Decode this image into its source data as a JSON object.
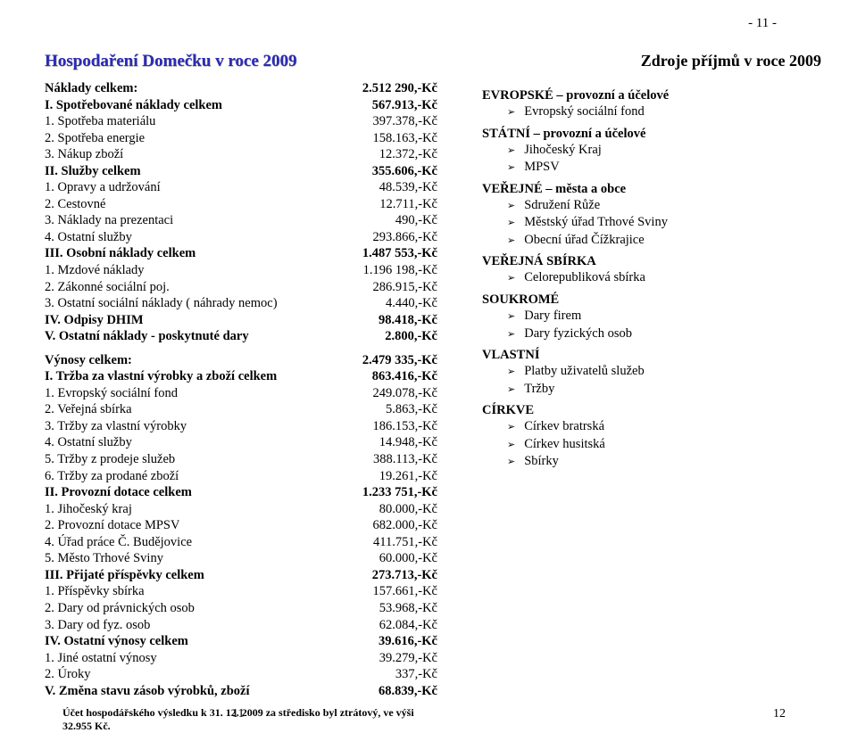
{
  "page_top": "- 11 -",
  "left_title": "Hospodaření Domečku v roce 2009",
  "right_title": "Zdroje příjmů v roce 2009",
  "expenses": [
    {
      "label": "Náklady celkem:",
      "value": "2.512 290,-Kč",
      "bold": true
    },
    {
      "label": "I. Spotřebované náklady celkem",
      "value": "567.913,-Kč",
      "bold": true
    },
    {
      "label": "1. Spotřeba materiálu",
      "value": "397.378,-Kč"
    },
    {
      "label": "2. Spotřeba energie",
      "value": "158.163,-Kč"
    },
    {
      "label": "3. Nákup zboží",
      "value": "12.372,-Kč"
    },
    {
      "label": "II. Služby celkem",
      "value": "355.606,-Kč",
      "bold": true
    },
    {
      "label": "1. Opravy a udržování",
      "value": "48.539,-Kč"
    },
    {
      "label": "2. Cestovné",
      "value": "12.711,-Kč"
    },
    {
      "label": "3. Náklady na prezentaci",
      "value": "490,-Kč"
    },
    {
      "label": "4. Ostatní služby",
      "value": "293.866,-Kč"
    },
    {
      "label": "III. Osobní náklady celkem",
      "value": "1.487 553,-Kč",
      "bold": true
    },
    {
      "label": "1. Mzdové náklady",
      "value": "1.196 198,-Kč"
    },
    {
      "label": "2. Zákonné sociální poj.",
      "value": "286.915,-Kč"
    },
    {
      "label": "3. Ostatní sociální náklady ( náhrady nemoc)",
      "value": "4.440,-Kč"
    },
    {
      "label": "IV. Odpisy DHIM",
      "value": "98.418,-Kč",
      "bold": true
    },
    {
      "label": "V. Ostatní náklady - poskytnuté dary",
      "value": "2.800,-Kč",
      "bold": true
    }
  ],
  "revenues": [
    {
      "label": "Výnosy celkem:",
      "value": "2.479 335,-Kč",
      "bold": true
    },
    {
      "label": "I. Tržba za vlastní výrobky a zboží celkem",
      "value": "863.416,-Kč",
      "bold": true
    },
    {
      "label": "1. Evropský sociální fond",
      "value": "249.078,-Kč"
    },
    {
      "label": "2. Veřejná sbírka",
      "value": "5.863,-Kč"
    },
    {
      "label": "3. Tržby za vlastní výrobky",
      "value": "186.153,-Kč"
    },
    {
      "label": "4. Ostatní služby",
      "value": "14.948,-Kč"
    },
    {
      "label": "5. Tržby z prodeje služeb",
      "value": "388.113,-Kč"
    },
    {
      "label": "6. Tržby za prodané zboží",
      "value": "19.261,-Kč"
    },
    {
      "label": "II. Provozní dotace celkem",
      "value": "1.233 751,-Kč",
      "bold": true
    },
    {
      "label": "1. Jihočeský kraj",
      "value": "80.000,-Kč"
    },
    {
      "label": "2. Provozní dotace MPSV",
      "value": "682.000,-Kč"
    },
    {
      "label": "4. Úřad práce Č. Budějovice",
      "value": "411.751,-Kč"
    },
    {
      "label": "5. Město Trhové Sviny",
      "value": "60.000,-Kč"
    },
    {
      "label": "III. Přijaté příspěvky celkem",
      "value": "273.713,-Kč",
      "bold": true
    },
    {
      "label": "1. Příspěvky sbírka",
      "value": "157.661,-Kč"
    },
    {
      "label": "2. Dary od právnických osob",
      "value": "53.968,-Kč"
    },
    {
      "label": "3. Dary od fyz. osob",
      "value": "62.084,-Kč"
    },
    {
      "label": "IV. Ostatní výnosy celkem",
      "value": "39.616,-Kč",
      "bold": true
    },
    {
      "label": "1. Jiné ostatní výnosy",
      "value": "39.279,-Kč"
    },
    {
      "label": "2. Úroky",
      "value": "337,-Kč"
    },
    {
      "label": "V. Změna stavu zásob výrobků, zboží",
      "value": "68.839,-Kč",
      "bold": true
    }
  ],
  "footer_note": "Účet hospodářského výsledku k 31. 12. 2009 za středisko byl ztrátový, ve výši 32.955 Kč.",
  "page_left": "11",
  "page_right": "12",
  "sources": [
    {
      "title": "EVROPSKÉ – provozní a účelové",
      "items": [
        "Evropský sociální fond"
      ]
    },
    {
      "title": "STÁTNÍ – provozní a účelové",
      "items": [
        "Jihočeský Kraj",
        "MPSV"
      ]
    },
    {
      "title": "VEŘEJNÉ – města a obce",
      "items": [
        "Sdružení Růže",
        "Městský úřad Trhové Sviny",
        "Obecní úřad Čížkrajice"
      ]
    },
    {
      "title": "VEŘEJNÁ SBÍRKA",
      "items": [
        "Celorepubliková sbírka"
      ]
    },
    {
      "title": "SOUKROMÉ",
      "items": [
        "Dary firem",
        "Dary fyzických osob"
      ]
    },
    {
      "title": "VLASTNÍ",
      "items": [
        "Platby uživatelů služeb",
        "Tržby"
      ]
    },
    {
      "title": "CÍRKVE",
      "items": [
        "Církev bratrská",
        "Církev husitská",
        "Sbírky"
      ]
    }
  ]
}
